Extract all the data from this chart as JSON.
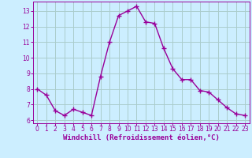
{
  "x": [
    0,
    1,
    2,
    3,
    4,
    5,
    6,
    7,
    8,
    9,
    10,
    11,
    12,
    13,
    14,
    15,
    16,
    17,
    18,
    19,
    20,
    21,
    22,
    23
  ],
  "y": [
    8.0,
    7.6,
    6.6,
    6.3,
    6.7,
    6.5,
    6.3,
    8.8,
    11.0,
    12.7,
    13.0,
    13.3,
    12.3,
    12.2,
    10.6,
    9.3,
    8.6,
    8.6,
    7.9,
    7.8,
    7.3,
    6.8,
    6.4,
    6.3
  ],
  "line_color": "#990099",
  "marker": "+",
  "bg_color": "#cceeff",
  "grid_color": "#aacccc",
  "xlabel": "Windchill (Refroidissement éolien,°C)",
  "xlabel_color": "#990099",
  "tick_color": "#990099",
  "label_color": "#990099",
  "ylim": [
    5.8,
    13.6
  ],
  "xlim": [
    -0.5,
    23.5
  ],
  "yticks": [
    6,
    7,
    8,
    9,
    10,
    11,
    12,
    13
  ],
  "xticks": [
    0,
    1,
    2,
    3,
    4,
    5,
    6,
    7,
    8,
    9,
    10,
    11,
    12,
    13,
    14,
    15,
    16,
    17,
    18,
    19,
    20,
    21,
    22,
    23
  ],
  "xlabel_fontsize": 6.5,
  "tick_fontsize": 5.5
}
